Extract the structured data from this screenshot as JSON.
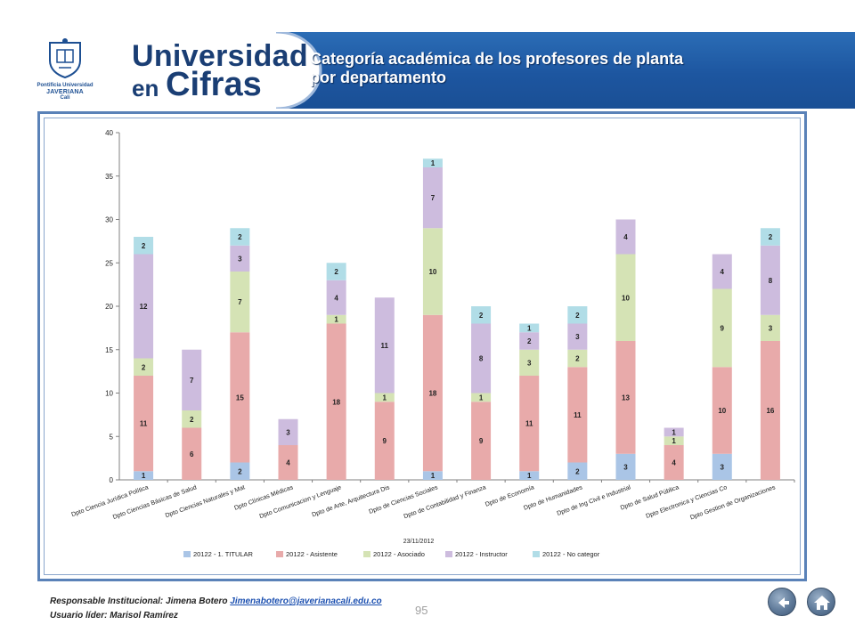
{
  "header": {
    "logo_line1": "Pontificia Universidad",
    "logo_line2": "JAVERIANA",
    "logo_line3": "Cali",
    "brand_line1": "Universidad",
    "brand_en": "en",
    "brand_cifras": "Cifras",
    "title": "Categoría académica de los profesores de planta por departamento"
  },
  "colors": {
    "banner": "#1d56a0",
    "titular": "#aac5e6",
    "asistente": "#e8aaaa",
    "asociado": "#d5e3b5",
    "instructor": "#cdbcde",
    "no_categor": "#b1dde7"
  },
  "chart_data": {
    "type": "bar",
    "stacked": true,
    "categories": [
      "Dpto Ciencia Jurídica Política",
      "Dpto Ciencias Básicas de Salud",
      "Dpto Ciencias Naturales y Mat",
      "Dpto Clínicas Médicas",
      "Dpto Comunicacion y Lenguaje",
      "Dpto de Arte, Arquitectura Dis",
      "Dpto de Ciencias Sociales",
      "Dpto de Contabilidad y Finanza",
      "Dpto de Economía",
      "Dpto de Humanidades",
      "Dpto de Ing Civil e Industrial",
      "Dpto de Salud Pública",
      "Dpto Electronica y Ciencias Co",
      "Dpto Gestion de Organizaciones"
    ],
    "series": [
      {
        "name": "20122 - 1. TITULAR",
        "color": "#aac5e6",
        "values": [
          1,
          0,
          2,
          0,
          0,
          0,
          1,
          0,
          1,
          2,
          3,
          0,
          3,
          0
        ]
      },
      {
        "name": "20122 - Asistente",
        "color": "#e8aaaa",
        "values": [
          11,
          6,
          15,
          4,
          18,
          9,
          18,
          9,
          11,
          11,
          13,
          4,
          10,
          16
        ]
      },
      {
        "name": "20122 - Asociado",
        "color": "#d5e3b5",
        "values": [
          2,
          2,
          7,
          0,
          1,
          1,
          10,
          1,
          3,
          2,
          10,
          1,
          9,
          3
        ]
      },
      {
        "name": "20122 - Instructor",
        "color": "#cdbcde",
        "values": [
          12,
          7,
          3,
          3,
          4,
          11,
          7,
          8,
          2,
          3,
          4,
          1,
          4,
          8
        ]
      },
      {
        "name": "20122 - No categor",
        "color": "#b1dde7",
        "values": [
          2,
          0,
          2,
          0,
          2,
          0,
          1,
          2,
          1,
          2,
          0,
          0,
          0,
          2
        ]
      }
    ],
    "ylim": [
      0,
      40
    ],
    "yticks": [
      0,
      5,
      10,
      15,
      20,
      25,
      30,
      35,
      40
    ],
    "date_label": "23/11/2012",
    "legend_position": "bottom",
    "grid": false
  },
  "footer": {
    "responsable_label": "Responsable Institucional: Jimena Botero",
    "email": "Jimenabotero@javerianacali.edu.co",
    "usuario": "Usuario líder: Marisol Ramírez",
    "page_number": "95"
  }
}
